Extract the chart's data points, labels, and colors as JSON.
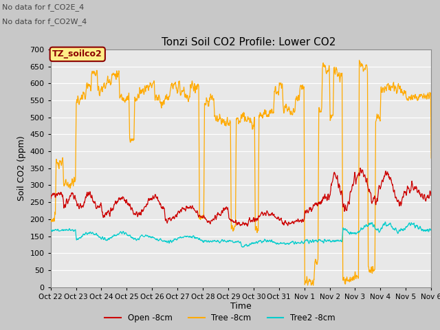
{
  "title": "Tonzi Soil CO2 Profile: Lower CO2",
  "ylabel": "Soil CO2 (ppm)",
  "xlabel": "Time",
  "ylim": [
    0,
    700
  ],
  "yticks": [
    0,
    50,
    100,
    150,
    200,
    250,
    300,
    350,
    400,
    450,
    500,
    550,
    600,
    650,
    700
  ],
  "xtick_labels": [
    "Oct 22",
    "Oct 23",
    "Oct 24",
    "Oct 25",
    "Oct 26",
    "Oct 27",
    "Oct 28",
    "Oct 29",
    "Oct 30",
    "Oct 31",
    "Nov 1",
    "Nov 2",
    "Nov 3",
    "Nov 4",
    "Nov 5",
    "Nov 6"
  ],
  "legend_labels": [
    "Open -8cm",
    "Tree -8cm",
    "Tree2 -8cm"
  ],
  "legend_colors": [
    "#cc0000",
    "#ffaa00",
    "#00cccc"
  ],
  "text_annotations": [
    "No data for f_CO2E_4",
    "No data for f_CO2W_4"
  ],
  "inset_label": "TZ_soilco2",
  "inset_label_color": "#8b0000",
  "inset_bg_color": "#ffee88",
  "open_color": "#cc0000",
  "tree_color": "#ffaa00",
  "tree2_color": "#00cccc",
  "fig_bg": "#c8c8c8",
  "ax_bg": "#e8e8e8"
}
